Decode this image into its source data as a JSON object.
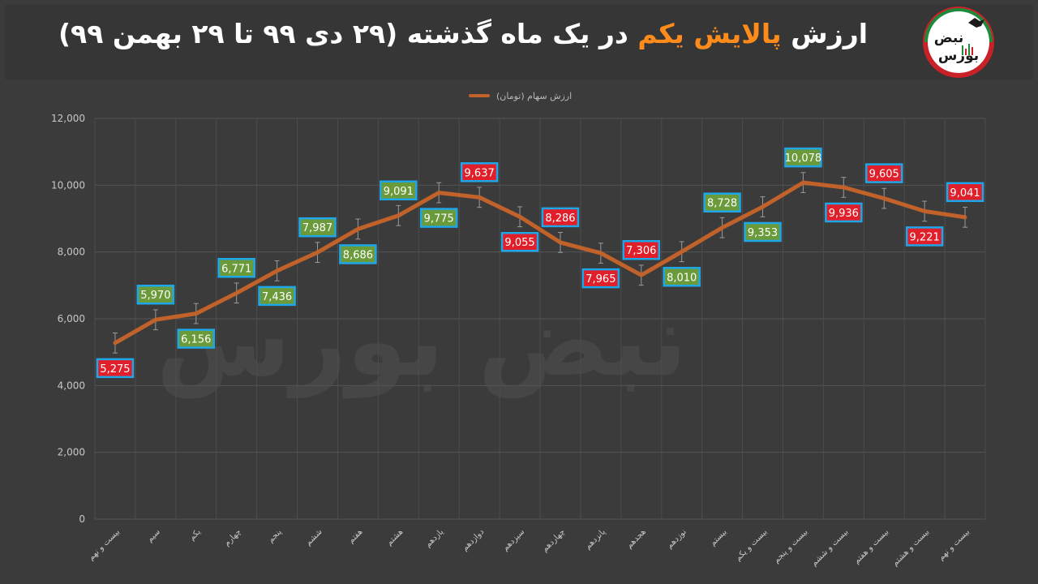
{
  "header": {
    "title_part1": "ارزش",
    "title_highlight": "پالایش یکم",
    "title_part2": "در یک ماه گذشته (۲۹ دی ۹۹ تا ۲۹ بهمن ۹۹)",
    "logo_text_top": "نبض",
    "logo_text_bottom": "بورس"
  },
  "watermark": "نبض بورس",
  "colors": {
    "line": "#c0622a",
    "increase_box": "#6a9a3a",
    "decrease_box": "#e01f2a",
    "box_border": "#1ea7e8",
    "highlight": "#ff8c1a"
  },
  "chart_data": {
    "type": "line",
    "categories": [
      "بیست و نهم",
      "سیم",
      "یکم",
      "چهارم",
      "پنجم",
      "ششم",
      "هفتم",
      "هشتم",
      "یازدهم",
      "دوازدهم",
      "سیزدهم",
      "چهاردهم",
      "پانزدهم",
      "هجدهم",
      "نوزدهم",
      "بیستم",
      "بیست و یکم",
      "بیست و پنجم",
      "بیست و ششم",
      "بیست و هفتم",
      "بیست و هشتم",
      "بیست و نهم"
    ],
    "series": [
      {
        "name": "ارزش سهام (تومان)",
        "values": [
          5275,
          5970,
          6156,
          6771,
          7436,
          7987,
          8686,
          9091,
          9775,
          9637,
          9055,
          8286,
          7965,
          7306,
          8010,
          8728,
          9353,
          10078,
          9936,
          9605,
          9221,
          9041
        ],
        "labels": [
          "5,275",
          "5,970",
          "6,156",
          "6,771",
          "7,436",
          "7,987",
          "8,686",
          "9,091",
          "9,775",
          "9,637",
          "9,055",
          "8,286",
          "7,965",
          "7,306",
          "8,010",
          "8,728",
          "9,353",
          "10,078",
          "9,936",
          "9,605",
          "9,221",
          "9,041"
        ],
        "label_position": [
          "below",
          "above",
          "below",
          "above",
          "below",
          "above",
          "below",
          "above",
          "below",
          "above",
          "below",
          "above",
          "below",
          "above",
          "below",
          "above",
          "below",
          "above",
          "below",
          "above",
          "below",
          "above"
        ],
        "trend": [
          "down",
          "up",
          "up",
          "up",
          "up",
          "up",
          "up",
          "up",
          "up",
          "down",
          "down",
          "down",
          "down",
          "down",
          "up",
          "up",
          "up",
          "up",
          "down",
          "down",
          "down",
          "down"
        ]
      }
    ],
    "yticks": [
      "0",
      "2,000",
      "4,000",
      "6,000",
      "8,000",
      "10,000",
      "12,000"
    ],
    "ylim": [
      0,
      12000
    ],
    "error_bar": 300,
    "grid": true,
    "legend": "top-center"
  }
}
